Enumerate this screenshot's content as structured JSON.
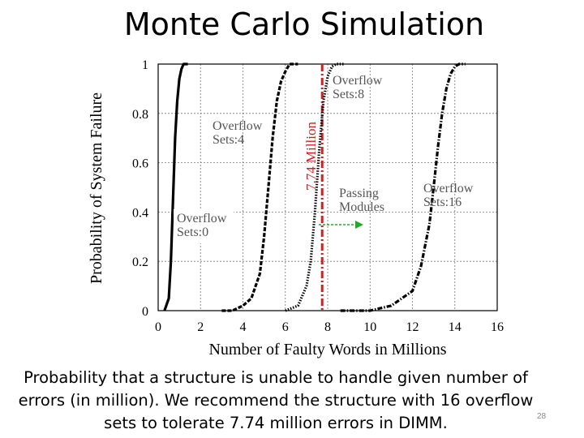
{
  "slide": {
    "title": "Monte Carlo Simulation",
    "caption": "Probability that a structure is unable to handle given number of errors (in million). We recommend the structure with 16 overflow sets to tolerate 7.74 million errors in DIMM.",
    "page_number": "28"
  },
  "chart_data": {
    "type": "line",
    "title": "",
    "xlabel": "Number of Faulty Words in Millions",
    "ylabel": "Probability of System Failure",
    "xlim": [
      0,
      16
    ],
    "ylim": [
      0,
      1
    ],
    "x_ticks": [
      "0",
      "2",
      "4",
      "6",
      "8",
      "10",
      "12",
      "14",
      "16"
    ],
    "y_ticks": [
      "0",
      "0.2",
      "0.4",
      "0.6",
      "0.8",
      "1"
    ],
    "grid": true,
    "series": [
      {
        "name": "Overflow Sets:0",
        "style": "solid",
        "x": [
          0.3,
          0.5,
          0.6,
          0.7,
          0.8,
          0.9,
          1.0,
          1.1,
          1.2,
          1.4
        ],
        "y": [
          0,
          0.05,
          0.2,
          0.45,
          0.7,
          0.85,
          0.94,
          0.98,
          1.0,
          1.0
        ]
      },
      {
        "name": "Overflow Sets:4",
        "style": "dashed",
        "x": [
          3.0,
          3.5,
          4.0,
          4.4,
          4.8,
          5.0,
          5.2,
          5.4,
          5.6,
          5.8,
          6.0,
          6.2,
          6.6
        ],
        "y": [
          0,
          0.0,
          0.02,
          0.05,
          0.15,
          0.3,
          0.5,
          0.7,
          0.85,
          0.93,
          0.97,
          1.0,
          1.0
        ]
      },
      {
        "name": "Overflow Sets:8",
        "style": "dotted",
        "x": [
          6.0,
          6.6,
          7.0,
          7.2,
          7.4,
          7.6,
          7.8,
          8.0,
          8.2,
          8.4,
          8.8
        ],
        "y": [
          0,
          0.02,
          0.1,
          0.2,
          0.4,
          0.65,
          0.85,
          0.95,
          0.99,
          1.0,
          1.0
        ]
      },
      {
        "name": "Overflow Sets:16",
        "style": "dash-dot",
        "x": [
          8.6,
          10.0,
          11.0,
          12.0,
          12.4,
          12.8,
          13.0,
          13.2,
          13.4,
          13.6,
          13.8,
          14.0,
          14.2,
          14.5
        ],
        "y": [
          0,
          0.0,
          0.02,
          0.08,
          0.18,
          0.35,
          0.5,
          0.66,
          0.8,
          0.9,
          0.96,
          0.99,
          1.0,
          1.0
        ]
      }
    ],
    "reference_line": {
      "x": 7.74,
      "label": "7.74 Million",
      "color": "#cc2222"
    },
    "annotations": [
      {
        "text_lines": [
          "Overflow",
          "Sets:0"
        ],
        "color": "#555555"
      },
      {
        "text_lines": [
          "Overflow",
          "Sets:4"
        ],
        "color": "#555555"
      },
      {
        "text_lines": [
          "Overflow",
          "Sets:8"
        ],
        "color": "#555555"
      },
      {
        "text_lines": [
          "Overflow",
          "Sets:16"
        ],
        "color": "#555555"
      },
      {
        "text_lines": [
          "Passing",
          "Modules"
        ],
        "color": "#555555",
        "arrow_color": "#22aa22"
      }
    ]
  }
}
